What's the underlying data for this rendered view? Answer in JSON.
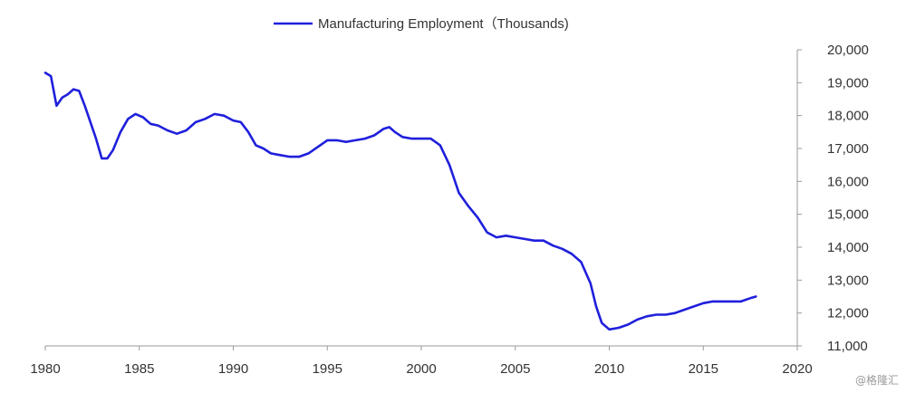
{
  "chart_data": {
    "type": "line",
    "legend_position": "top-center",
    "grid": false,
    "series": [
      {
        "name": "Manufacturing Employment（Thousands)",
        "color": "#1f1fdc",
        "points": [
          [
            1980.0,
            19300
          ],
          [
            1980.3,
            19200
          ],
          [
            1980.6,
            18300
          ],
          [
            1980.9,
            18550
          ],
          [
            1981.2,
            18650
          ],
          [
            1981.5,
            18800
          ],
          [
            1981.8,
            18750
          ],
          [
            1982.1,
            18300
          ],
          [
            1982.4,
            17800
          ],
          [
            1982.7,
            17300
          ],
          [
            1983.0,
            16700
          ],
          [
            1983.3,
            16700
          ],
          [
            1983.6,
            16950
          ],
          [
            1984.0,
            17500
          ],
          [
            1984.4,
            17900
          ],
          [
            1984.8,
            18050
          ],
          [
            1985.2,
            17950
          ],
          [
            1985.6,
            17750
          ],
          [
            1986.0,
            17700
          ],
          [
            1986.5,
            17550
          ],
          [
            1987.0,
            17450
          ],
          [
            1987.5,
            17550
          ],
          [
            1988.0,
            17800
          ],
          [
            1988.5,
            17900
          ],
          [
            1989.0,
            18050
          ],
          [
            1989.5,
            18000
          ],
          [
            1990.0,
            17850
          ],
          [
            1990.4,
            17800
          ],
          [
            1990.8,
            17500
          ],
          [
            1991.2,
            17100
          ],
          [
            1991.6,
            17000
          ],
          [
            1992.0,
            16850
          ],
          [
            1992.5,
            16800
          ],
          [
            1993.0,
            16750
          ],
          [
            1993.5,
            16750
          ],
          [
            1994.0,
            16850
          ],
          [
            1994.5,
            17050
          ],
          [
            1995.0,
            17250
          ],
          [
            1995.5,
            17250
          ],
          [
            1996.0,
            17200
          ],
          [
            1996.5,
            17250
          ],
          [
            1997.0,
            17300
          ],
          [
            1997.5,
            17400
          ],
          [
            1998.0,
            17600
          ],
          [
            1998.3,
            17650
          ],
          [
            1998.6,
            17500
          ],
          [
            1999.0,
            17350
          ],
          [
            1999.5,
            17300
          ],
          [
            2000.0,
            17300
          ],
          [
            2000.5,
            17300
          ],
          [
            2001.0,
            17100
          ],
          [
            2001.5,
            16500
          ],
          [
            2002.0,
            15650
          ],
          [
            2002.5,
            15250
          ],
          [
            2003.0,
            14900
          ],
          [
            2003.5,
            14450
          ],
          [
            2004.0,
            14300
          ],
          [
            2004.5,
            14350
          ],
          [
            2005.0,
            14300
          ],
          [
            2005.5,
            14250
          ],
          [
            2006.0,
            14200
          ],
          [
            2006.5,
            14200
          ],
          [
            2007.0,
            14050
          ],
          [
            2007.5,
            13950
          ],
          [
            2008.0,
            13800
          ],
          [
            2008.5,
            13550
          ],
          [
            2009.0,
            12900
          ],
          [
            2009.3,
            12200
          ],
          [
            2009.6,
            11700
          ],
          [
            2010.0,
            11500
          ],
          [
            2010.5,
            11550
          ],
          [
            2011.0,
            11650
          ],
          [
            2011.5,
            11800
          ],
          [
            2012.0,
            11900
          ],
          [
            2012.5,
            11950
          ],
          [
            2013.0,
            11950
          ],
          [
            2013.5,
            12000
          ],
          [
            2014.0,
            12100
          ],
          [
            2014.5,
            12200
          ],
          [
            2015.0,
            12300
          ],
          [
            2015.5,
            12350
          ],
          [
            2016.0,
            12350
          ],
          [
            2016.5,
            12350
          ],
          [
            2017.0,
            12350
          ],
          [
            2017.5,
            12450
          ],
          [
            2017.8,
            12500
          ]
        ]
      }
    ],
    "xlim": [
      1980,
      2020
    ],
    "ylim": [
      11000,
      20000
    ],
    "x_ticks": [
      1980,
      1985,
      1990,
      1995,
      2000,
      2005,
      2010,
      2015,
      2020
    ],
    "x_tick_labels": [
      "1980",
      "1985",
      "1990",
      "1995",
      "2000",
      "2005",
      "2010",
      "2015",
      "2020"
    ],
    "y_ticks": [
      11000,
      12000,
      13000,
      14000,
      15000,
      16000,
      17000,
      18000,
      19000,
      20000
    ],
    "y_tick_labels": [
      "11,000",
      "12,000",
      "13,000",
      "14,000",
      "15,000",
      "16,000",
      "17,000",
      "18,000",
      "19,000",
      "20,000"
    ],
    "y_axis_side": "right"
  },
  "watermark": "@格隆汇"
}
